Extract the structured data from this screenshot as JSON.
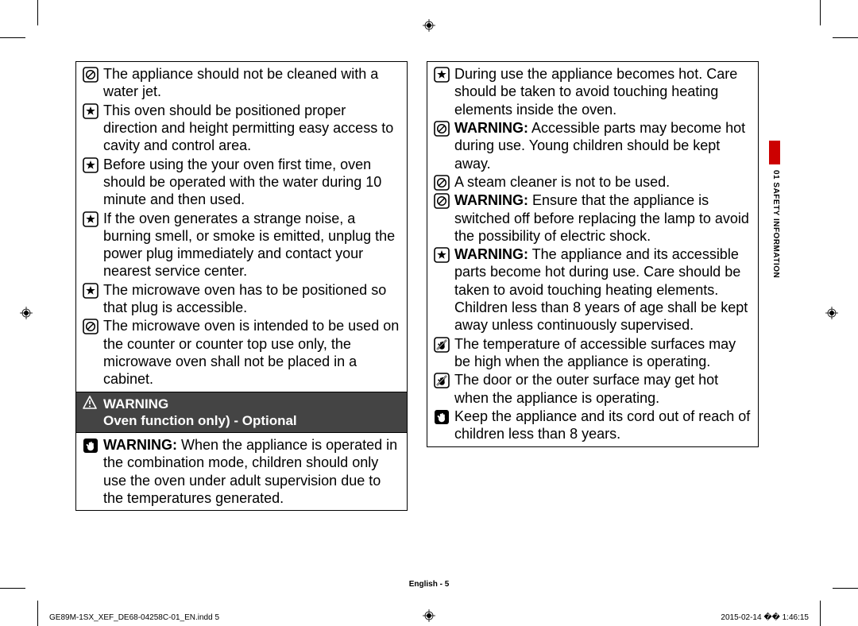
{
  "sideTab": {
    "label": "01  SAFETY INFORMATION",
    "accent_color": "#c00000"
  },
  "footer": {
    "page_label": "English - 5",
    "doc_ref": "GE89M-1SX_XEF_DE68-04258C-01_EN.indd   5",
    "timestamp": "2015-02-14   �� 1:46:15"
  },
  "warningHeader": {
    "title": "WARNING",
    "subtitle": "Oven function only) - Optional"
  },
  "left_top": [
    {
      "icon": "prohibit",
      "text": "The appliance should not be cleaned with a water jet."
    },
    {
      "icon": "star",
      "text": "This oven should be positioned proper direction and height permitting easy access to cavity and control area."
    },
    {
      "icon": "star",
      "text": "Before using the your oven first time, oven should be operated with the water during 10 minute and then used."
    },
    {
      "icon": "star",
      "text": "If the oven generates a strange noise, a burning smell, or smoke is emitted, unplug the power plug immediately and contact your nearest service center."
    },
    {
      "icon": "star",
      "text": "The microwave oven has to be positioned so that plug is accessible."
    },
    {
      "icon": "prohibit",
      "text": "The microwave oven is intended to be used on the counter or counter top use only, the microwave oven shall not be placed in a cabinet."
    }
  ],
  "left_bottom": [
    {
      "icon": "hand",
      "bold": "WARNING:",
      "text": " When the appliance is operated in the combination mode, children should only use the oven under adult supervision due to the temperatures generated."
    }
  ],
  "right": [
    {
      "icon": "star",
      "text": "During use the appliance becomes hot. Care should be taken to avoid touching heating elements inside the oven."
    },
    {
      "icon": "prohibit",
      "bold": "WARNING:",
      "text": " Accessible parts may become hot during use. Young children should be kept away."
    },
    {
      "icon": "prohibit",
      "text": "A steam cleaner is not to be used."
    },
    {
      "icon": "prohibit",
      "bold": "WARNING:",
      "text": " Ensure that the appliance is switched off before replacing the lamp to avoid the possibility of electric shock."
    },
    {
      "icon": "star",
      "bold": "WARNING:",
      "text": " The appliance and its accessible parts become hot during use. Care should be taken to avoid touching heating elements.\nChildren less than 8 years of age shall be kept away unless continuously supervised."
    },
    {
      "icon": "notouch",
      "text": "The temperature of accessible surfaces may be high when the appliance is operating."
    },
    {
      "icon": "notouch",
      "text": "The door or the outer surface may get hot when the appliance is operating."
    },
    {
      "icon": "hand",
      "text": "Keep the appliance and its cord out of reach of children less than 8 years."
    }
  ]
}
